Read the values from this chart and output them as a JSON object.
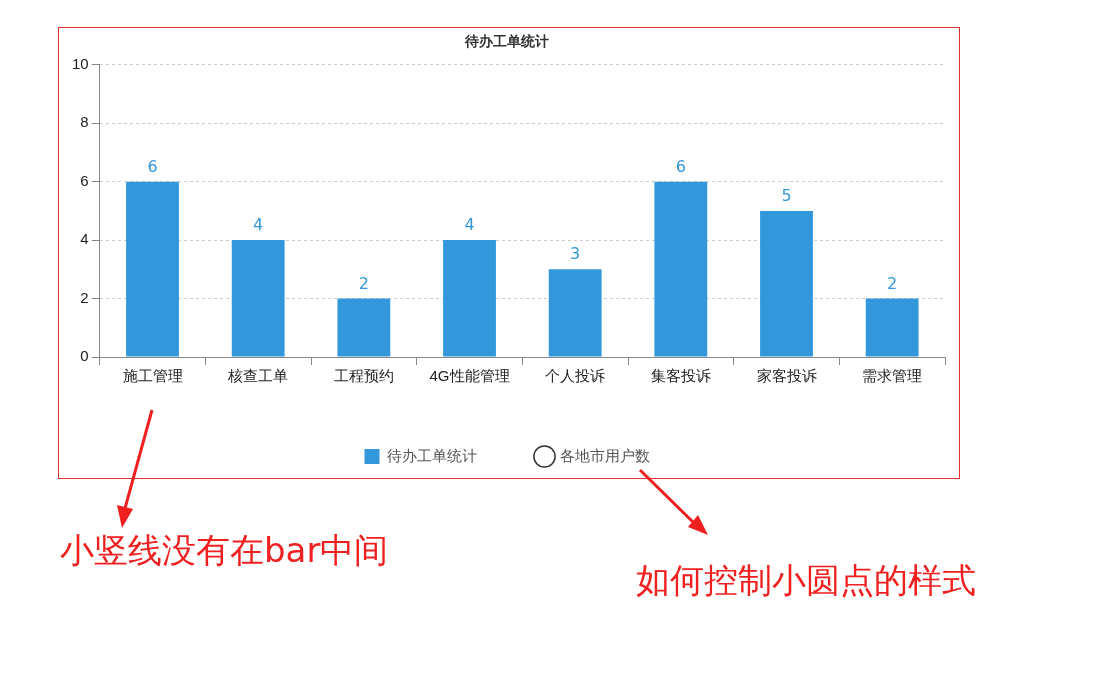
{
  "chart_data": {
    "type": "bar",
    "title": "待办工单统计",
    "categories": [
      "施工管理",
      "核查工单",
      "工程预约",
      "4G性能管理",
      "个人投诉",
      "集客投诉",
      "家客投诉",
      "需求管理"
    ],
    "series": [
      {
        "name": "待办工单统计",
        "color": "#3398db",
        "values": [
          6,
          4,
          2,
          4,
          3,
          6,
          5,
          2
        ]
      },
      {
        "name": "各地市用户数",
        "type": "line",
        "color": "#333333",
        "marker": "circle",
        "values": [
          null,
          null,
          null,
          null,
          null,
          null,
          null,
          null
        ]
      }
    ],
    "ylim": [
      0,
      10
    ],
    "yticks": [
      0,
      2,
      4,
      6,
      8,
      10
    ],
    "grid": "y",
    "legend": "bottom",
    "data_labels": true,
    "annotations": [
      "小竖线没有在bar中间",
      "如何控制小圆点的样式"
    ]
  }
}
